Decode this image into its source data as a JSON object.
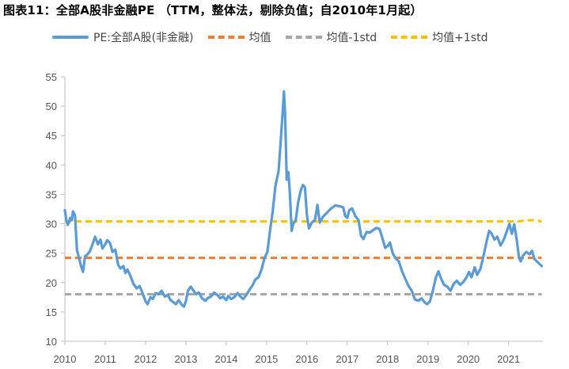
{
  "title": "图表11：全部A股非金融PE （TTM，整体法，剔除负值；自2010年1月起）",
  "chart_data": {
    "type": "line",
    "title": "图表11：全部A股非金融PE （TTM，整体法，剔除负值；自2010年1月起）",
    "xlabel": "",
    "ylabel": "",
    "xlim": [
      2010.0,
      2021.85
    ],
    "ylim": [
      10,
      55
    ],
    "y_ticks": [
      "10",
      "15",
      "20",
      "25",
      "30",
      "35",
      "40",
      "45",
      "50",
      "55"
    ],
    "x_ticks": [
      "2010",
      "2011",
      "2012",
      "2013",
      "2014",
      "2015",
      "2016",
      "2017",
      "2018",
      "2019",
      "2020",
      "2021"
    ],
    "grid": false,
    "legend_position": "top",
    "series": [
      {
        "name": "PE:全部A股(非金融)",
        "color": "#5b9bd5",
        "style": "solid",
        "points": [
          [
            2010.0,
            32.3
          ],
          [
            2010.04,
            30.5
          ],
          [
            2010.07,
            29.8
          ],
          [
            2010.1,
            30.2
          ],
          [
            2010.13,
            31.0
          ],
          [
            2010.17,
            30.6
          ],
          [
            2010.2,
            32.1
          ],
          [
            2010.25,
            31.5
          ],
          [
            2010.3,
            25.5
          ],
          [
            2010.35,
            24.2
          ],
          [
            2010.4,
            22.8
          ],
          [
            2010.45,
            21.8
          ],
          [
            2010.5,
            24.5
          ],
          [
            2010.55,
            24.7
          ],
          [
            2010.62,
            25.3
          ],
          [
            2010.7,
            26.8
          ],
          [
            2010.75,
            27.8
          ],
          [
            2010.82,
            26.5
          ],
          [
            2010.88,
            27.3
          ],
          [
            2010.93,
            25.8
          ],
          [
            2011.0,
            26.5
          ],
          [
            2011.05,
            27.2
          ],
          [
            2011.12,
            26.7
          ],
          [
            2011.18,
            25.2
          ],
          [
            2011.25,
            25.6
          ],
          [
            2011.32,
            23.0
          ],
          [
            2011.38,
            22.4
          ],
          [
            2011.45,
            22.8
          ],
          [
            2011.5,
            21.6
          ],
          [
            2011.55,
            22.2
          ],
          [
            2011.62,
            21.2
          ],
          [
            2011.7,
            19.8
          ],
          [
            2011.78,
            19.0
          ],
          [
            2011.85,
            19.4
          ],
          [
            2011.92,
            18.3
          ],
          [
            2012.0,
            16.8
          ],
          [
            2012.05,
            16.3
          ],
          [
            2012.12,
            17.5
          ],
          [
            2012.18,
            17.2
          ],
          [
            2012.25,
            18.2
          ],
          [
            2012.32,
            18.0
          ],
          [
            2012.4,
            18.6
          ],
          [
            2012.48,
            17.6
          ],
          [
            2012.55,
            17.9
          ],
          [
            2012.62,
            17.0
          ],
          [
            2012.68,
            16.7
          ],
          [
            2012.75,
            16.3
          ],
          [
            2012.82,
            17.0
          ],
          [
            2012.9,
            16.2
          ],
          [
            2012.95,
            15.9
          ],
          [
            2013.0,
            16.8
          ],
          [
            2013.05,
            18.6
          ],
          [
            2013.12,
            19.3
          ],
          [
            2013.18,
            18.7
          ],
          [
            2013.25,
            18.0
          ],
          [
            2013.32,
            18.3
          ],
          [
            2013.4,
            17.3
          ],
          [
            2013.48,
            16.9
          ],
          [
            2013.55,
            17.4
          ],
          [
            2013.62,
            17.6
          ],
          [
            2013.7,
            18.3
          ],
          [
            2013.78,
            17.9
          ],
          [
            2013.85,
            17.3
          ],
          [
            2013.92,
            17.6
          ],
          [
            2014.0,
            17.0
          ],
          [
            2014.05,
            17.7
          ],
          [
            2014.12,
            17.2
          ],
          [
            2014.2,
            17.5
          ],
          [
            2014.28,
            18.2
          ],
          [
            2014.35,
            17.6
          ],
          [
            2014.42,
            17.2
          ],
          [
            2014.5,
            17.9
          ],
          [
            2014.58,
            18.8
          ],
          [
            2014.65,
            19.5
          ],
          [
            2014.72,
            20.5
          ],
          [
            2014.8,
            20.9
          ],
          [
            2014.88,
            22.3
          ],
          [
            2014.95,
            24.2
          ],
          [
            2015.02,
            25.2
          ],
          [
            2015.08,
            28.5
          ],
          [
            2015.15,
            32.0
          ],
          [
            2015.22,
            36.5
          ],
          [
            2015.3,
            39.0
          ],
          [
            2015.36,
            45.0
          ],
          [
            2015.4,
            49.0
          ],
          [
            2015.43,
            52.5
          ],
          [
            2015.46,
            48.5
          ],
          [
            2015.5,
            37.5
          ],
          [
            2015.54,
            38.8
          ],
          [
            2015.58,
            35.0
          ],
          [
            2015.62,
            28.8
          ],
          [
            2015.66,
            30.0
          ],
          [
            2015.72,
            30.5
          ],
          [
            2015.78,
            33.5
          ],
          [
            2015.84,
            35.5
          ],
          [
            2015.9,
            36.6
          ],
          [
            2015.95,
            36.2
          ],
          [
            2016.0,
            31.5
          ],
          [
            2016.05,
            29.2
          ],
          [
            2016.12,
            30.2
          ],
          [
            2016.2,
            30.6
          ],
          [
            2016.26,
            33.2
          ],
          [
            2016.32,
            30.2
          ],
          [
            2016.4,
            31.2
          ],
          [
            2016.5,
            31.9
          ],
          [
            2016.6,
            32.6
          ],
          [
            2016.7,
            33.1
          ],
          [
            2016.8,
            33.0
          ],
          [
            2016.9,
            32.8
          ],
          [
            2016.95,
            31.3
          ],
          [
            2017.0,
            31.0
          ],
          [
            2017.05,
            32.3
          ],
          [
            2017.12,
            32.6
          ],
          [
            2017.2,
            31.3
          ],
          [
            2017.28,
            30.6
          ],
          [
            2017.34,
            28.0
          ],
          [
            2017.4,
            27.4
          ],
          [
            2017.48,
            28.6
          ],
          [
            2017.56,
            28.5
          ],
          [
            2017.64,
            28.9
          ],
          [
            2017.72,
            29.3
          ],
          [
            2017.8,
            29.1
          ],
          [
            2017.87,
            27.6
          ],
          [
            2017.94,
            25.9
          ],
          [
            2018.0,
            26.2
          ],
          [
            2018.06,
            26.8
          ],
          [
            2018.13,
            24.9
          ],
          [
            2018.2,
            24.1
          ],
          [
            2018.28,
            23.6
          ],
          [
            2018.36,
            21.9
          ],
          [
            2018.44,
            20.6
          ],
          [
            2018.52,
            19.4
          ],
          [
            2018.6,
            18.6
          ],
          [
            2018.68,
            17.1
          ],
          [
            2018.76,
            16.9
          ],
          [
            2018.84,
            17.3
          ],
          [
            2018.92,
            16.6
          ],
          [
            2018.98,
            16.3
          ],
          [
            2019.05,
            16.8
          ],
          [
            2019.12,
            18.6
          ],
          [
            2019.2,
            20.9
          ],
          [
            2019.26,
            21.9
          ],
          [
            2019.33,
            20.6
          ],
          [
            2019.4,
            19.6
          ],
          [
            2019.48,
            19.3
          ],
          [
            2019.56,
            18.6
          ],
          [
            2019.64,
            19.8
          ],
          [
            2019.72,
            20.3
          ],
          [
            2019.8,
            19.6
          ],
          [
            2019.88,
            20.1
          ],
          [
            2019.95,
            20.8
          ],
          [
            2020.02,
            21.8
          ],
          [
            2020.08,
            20.9
          ],
          [
            2020.16,
            22.6
          ],
          [
            2020.22,
            21.3
          ],
          [
            2020.3,
            22.3
          ],
          [
            2020.38,
            24.6
          ],
          [
            2020.46,
            27.2
          ],
          [
            2020.52,
            28.8
          ],
          [
            2020.58,
            28.3
          ],
          [
            2020.65,
            27.3
          ],
          [
            2020.72,
            27.8
          ],
          [
            2020.8,
            26.3
          ],
          [
            2020.88,
            27.3
          ],
          [
            2020.95,
            28.6
          ],
          [
            2021.02,
            30.0
          ],
          [
            2021.08,
            28.3
          ],
          [
            2021.14,
            29.9
          ],
          [
            2021.2,
            27.3
          ],
          [
            2021.26,
            24.2
          ],
          [
            2021.3,
            23.6
          ],
          [
            2021.36,
            24.6
          ],
          [
            2021.44,
            25.2
          ],
          [
            2021.52,
            24.8
          ],
          [
            2021.58,
            25.4
          ],
          [
            2021.64,
            24.0
          ],
          [
            2021.7,
            23.6
          ],
          [
            2021.76,
            23.2
          ],
          [
            2021.82,
            22.8
          ]
        ]
      },
      {
        "name": "均值",
        "color": "#ed7d31",
        "style": "dashed",
        "points": [
          [
            2010.0,
            24.2
          ],
          [
            2021.82,
            24.2
          ]
        ]
      },
      {
        "name": "均值-1std",
        "color": "#a5a5a5",
        "style": "dashed",
        "points": [
          [
            2010.0,
            18.0
          ],
          [
            2021.82,
            18.0
          ]
        ]
      },
      {
        "name": "均值+1std",
        "color": "#ffc000",
        "style": "dashed",
        "points": [
          [
            2010.0,
            30.4
          ],
          [
            2021.3,
            30.4
          ],
          [
            2021.4,
            30.6
          ],
          [
            2021.62,
            30.6
          ],
          [
            2021.82,
            30.4
          ]
        ]
      }
    ]
  }
}
